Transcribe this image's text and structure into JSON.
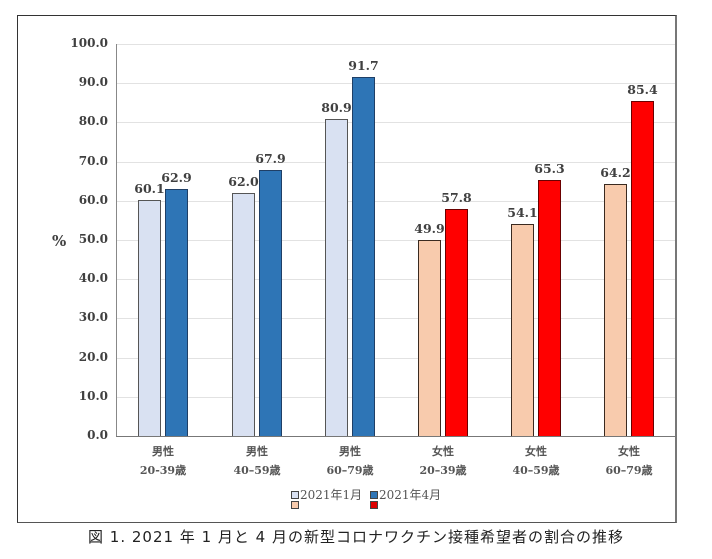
{
  "chart_data": {
    "type": "bar",
    "title": "図 1. 2021 年 1 月と 4 月の新型コロナワクチン接種希望者の割合の推移",
    "xlabel": "",
    "ylabel": "%",
    "ylim": [
      0,
      100
    ],
    "yticks": [
      "0.0",
      "10.0",
      "20.0",
      "30.0",
      "40.0",
      "50.0",
      "60.0",
      "70.0",
      "80.0",
      "90.0",
      "100.0"
    ],
    "grid": true,
    "legend_position": "bottom",
    "categories": [
      {
        "line1": "男性",
        "line2": "20-39歳"
      },
      {
        "line1": "男性",
        "line2": "40–59歳"
      },
      {
        "line1": "男性",
        "line2": "60–79歳"
      },
      {
        "line1": "女性",
        "line2": "20–39歳"
      },
      {
        "line1": "女性",
        "line2": "40–59歳"
      },
      {
        "line1": "女性",
        "line2": "60–79歳"
      }
    ],
    "series": [
      {
        "name": "2021年1月",
        "values": [
          60.1,
          62.0,
          80.9,
          49.9,
          54.1,
          64.2
        ],
        "labels": [
          "60.1",
          "62.0",
          "80.9",
          "49.9",
          "54.1",
          "64.2"
        ],
        "colors": {
          "male": "#d9e1f2",
          "female": "#f8cbad"
        }
      },
      {
        "name": "2021年4月",
        "values": [
          62.9,
          67.9,
          91.7,
          57.8,
          65.3,
          85.4
        ],
        "labels": [
          "62.9",
          "67.9",
          "91.7",
          "57.8",
          "65.3",
          "85.4"
        ],
        "colors": {
          "male": "#2e75b6",
          "female": "#ff0000"
        }
      }
    ]
  },
  "legend": {
    "jan_label": "2021年1月",
    "apr_label": "2021年4月"
  },
  "caption": "図 1. 2021 年 1 月と 4 月の新型コロナワクチン接種希望者の割合の推移"
}
